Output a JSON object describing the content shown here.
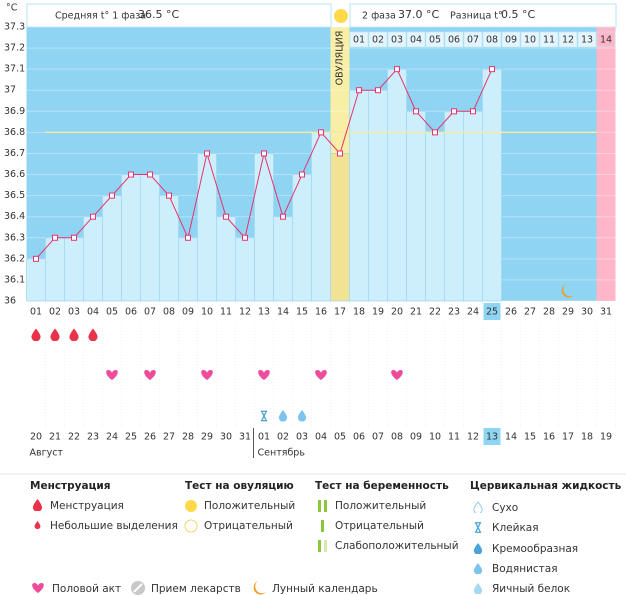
{
  "header": {
    "phase1_label": "Средняя t° 1 фаза",
    "phase1_value": "36.5 °C",
    "phase2_label": "2 фаза",
    "phase2_value": "37.0 °C",
    "diff_label": "Разница t°",
    "diff_value": "0.5 °C"
  },
  "chart_data": {
    "type": "line",
    "unit": "°C",
    "categories": [
      "01",
      "02",
      "03",
      "04",
      "05",
      "06",
      "07",
      "08",
      "09",
      "10",
      "11",
      "12",
      "13",
      "14",
      "15",
      "16",
      "17",
      "18",
      "19",
      "20",
      "21",
      "22",
      "23",
      "24",
      "25",
      "26",
      "27",
      "28",
      "29",
      "30",
      "31"
    ],
    "values": [
      36.2,
      36.3,
      36.3,
      36.4,
      36.5,
      36.6,
      36.6,
      36.5,
      36.3,
      36.7,
      36.4,
      36.3,
      36.7,
      36.4,
      36.6,
      36.8,
      36.7,
      37.0,
      37.0,
      37.1,
      36.9,
      36.8,
      36.9,
      36.9,
      37.1,
      null,
      null,
      null,
      null,
      null,
      null
    ],
    "ylim": [
      36,
      37.3
    ],
    "yticks": [
      37.3,
      37.2,
      37.1,
      37,
      36.9,
      36.8,
      36.7,
      36.6,
      36.5,
      36.4,
      36.3,
      36.2,
      36.1,
      36
    ],
    "coverline": 36.8,
    "ovulation_day": "17",
    "ovulation_label": "ОВУЛЯЦИЯ",
    "period_day": "31",
    "today": "25",
    "moon_day": "29",
    "luteal_start": "18",
    "luteal_days": [
      "01",
      "02",
      "03",
      "04",
      "05",
      "06",
      "07",
      "08",
      "09",
      "10",
      "11",
      "12",
      "13",
      "14"
    ],
    "menstruation": [
      "01",
      "02",
      "03",
      "04"
    ],
    "intercourse": [
      "05",
      "07",
      "10",
      "13",
      "16",
      "20"
    ],
    "sticky": [
      "13"
    ],
    "creamy": [
      "14",
      "15"
    ],
    "dates": [
      "20",
      "21",
      "22",
      "23",
      "24",
      "25",
      "26",
      "27",
      "28",
      "29",
      "30",
      "31",
      "01",
      "02",
      "03",
      "04",
      "05",
      "06",
      "07",
      "08",
      "09",
      "10",
      "11",
      "12",
      "13",
      "14",
      "15",
      "16",
      "17",
      "18",
      "19"
    ],
    "weekends": [
      "23",
      "24",
      "30",
      "31",
      "06",
      "07",
      "14"
    ],
    "today_date": "13",
    "months": [
      {
        "label": "Август",
        "start": "20"
      },
      {
        "label": "Сентябрь",
        "start": "01"
      }
    ]
  },
  "legend": {
    "menstruation": {
      "title": "Менструация",
      "items": [
        "Менструация",
        "Небольшие выделения"
      ]
    },
    "ovulation_test": {
      "title": "Тест на овуляцию",
      "items": [
        "Положительный",
        "Отрицательный"
      ]
    },
    "pregnancy_test": {
      "title": "Тест на беременность",
      "items": [
        "Положительный",
        "Отрицательный",
        "Слабоположительный"
      ]
    },
    "cervical": {
      "title": "Цервикальная жидкость",
      "items": [
        "Сухо",
        "Клейкая",
        "Кремообразная",
        "Водянистая",
        "Яичный белок"
      ]
    },
    "extra": [
      "Половой акт",
      "Прием лекарств",
      "Лунный календарь"
    ]
  }
}
